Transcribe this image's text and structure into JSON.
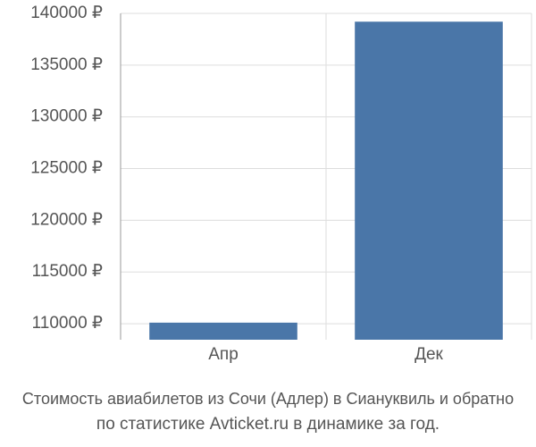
{
  "chart_data": {
    "type": "bar",
    "title": "Стоимость авиабилетов из Сочи (Адлер) в Сиануквиль и обратно",
    "subtitle": "по статистике Avticket.ru в динамике за год.",
    "categories": [
      "Апр",
      "Дек"
    ],
    "values": [
      110100,
      139200
    ],
    "color": "#4a76a8",
    "ylim": [
      108450,
      140000
    ],
    "yticks": [
      {
        "value": 110000,
        "label": "110000 ₽"
      },
      {
        "value": 115000,
        "label": "115000 ₽"
      },
      {
        "value": 120000,
        "label": "120000 ₽"
      },
      {
        "value": 125000,
        "label": "125000 ₽"
      },
      {
        "value": 130000,
        "label": "130000 ₽"
      },
      {
        "value": 135000,
        "label": "135000 ₽"
      },
      {
        "value": 140000,
        "label": "140000 ₽"
      }
    ],
    "grid": true
  }
}
